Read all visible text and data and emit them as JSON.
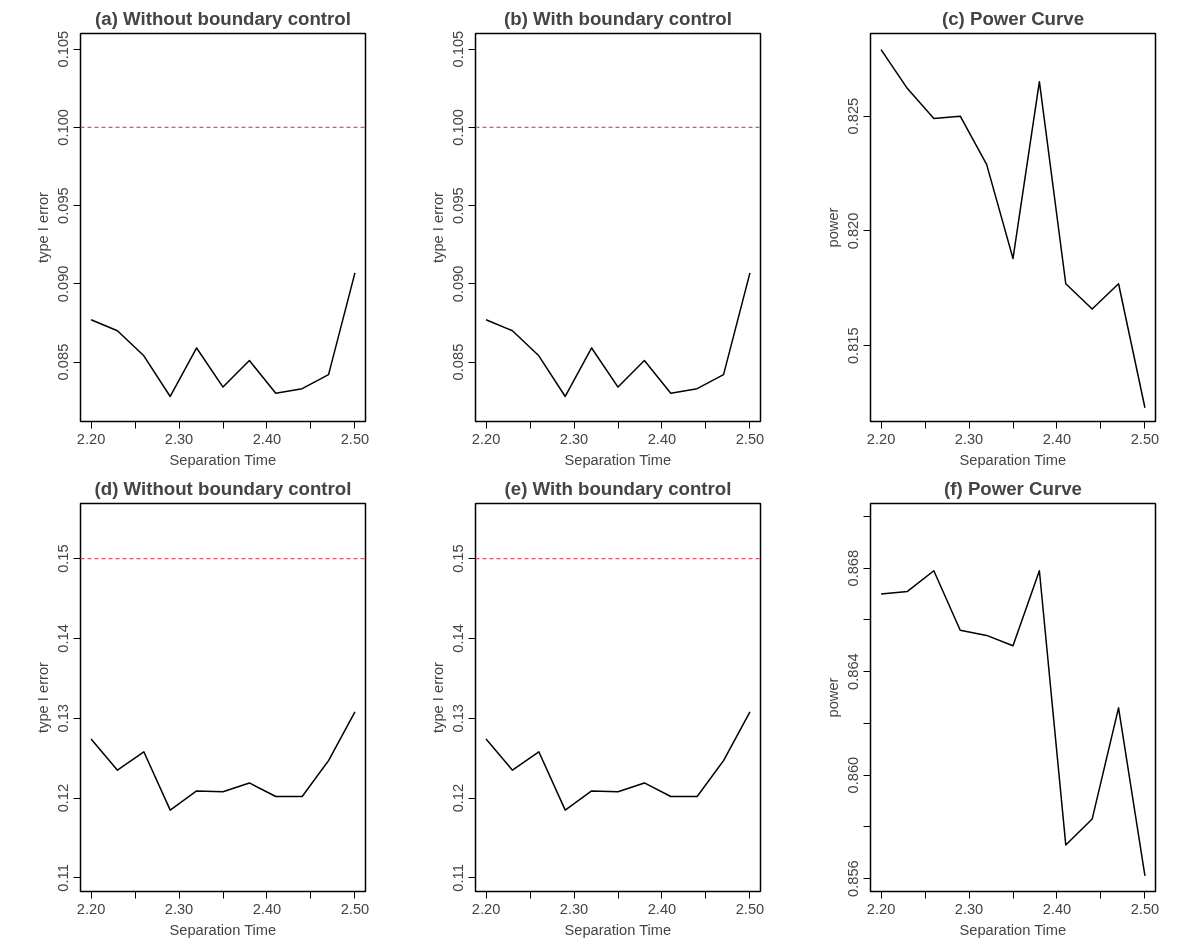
{
  "chart_data": [
    {
      "type": "line",
      "title": "(a) Without boundary control",
      "xlabel": "Separation Time",
      "ylabel": "type I error",
      "x": [
        2.2,
        2.23,
        2.26,
        2.29,
        2.32,
        2.35,
        2.38,
        2.41,
        2.44,
        2.47,
        2.5
      ],
      "xlim": [
        2.188,
        2.512
      ],
      "xticks": [
        {
          "value": 2.2,
          "label": "2.20"
        },
        {
          "value": 2.25,
          "label": null
        },
        {
          "value": 2.3,
          "label": "2.30"
        },
        {
          "value": 2.35,
          "label": null
        },
        {
          "value": 2.4,
          "label": "2.40"
        },
        {
          "value": 2.45,
          "label": null
        },
        {
          "value": 2.5,
          "label": "2.50"
        }
      ],
      "ylim": [
        0.0812,
        0.106
      ],
      "yticks": [
        0.085,
        {
          "value": 0.09,
          "label": "0.090"
        },
        0.095,
        {
          "value": 0.1,
          "label": "0.100"
        },
        0.105
      ],
      "series": [
        {
          "color": "#000000",
          "values": [
            0.0877,
            0.087,
            0.0854,
            0.0828,
            0.0859,
            0.0834,
            0.0851,
            0.083,
            0.0833,
            0.0842,
            0.0907
          ]
        }
      ],
      "ref_lines": [
        {
          "axis": "y",
          "value": 0.1,
          "color": "#df536b",
          "line_style": "dashed"
        }
      ]
    },
    {
      "type": "line",
      "title": "(b) With boundary control",
      "xlabel": "Separation Time",
      "ylabel": "type I error",
      "x": [
        2.2,
        2.23,
        2.26,
        2.29,
        2.32,
        2.35,
        2.38,
        2.41,
        2.44,
        2.47,
        2.5
      ],
      "xlim": [
        2.188,
        2.512
      ],
      "xticks": [
        {
          "value": 2.2,
          "label": "2.20"
        },
        {
          "value": 2.25,
          "label": null
        },
        {
          "value": 2.3,
          "label": "2.30"
        },
        {
          "value": 2.35,
          "label": null
        },
        {
          "value": 2.4,
          "label": "2.40"
        },
        {
          "value": 2.45,
          "label": null
        },
        {
          "value": 2.5,
          "label": "2.50"
        }
      ],
      "ylim": [
        0.0812,
        0.106
      ],
      "yticks": [
        0.085,
        {
          "value": 0.09,
          "label": "0.090"
        },
        0.095,
        {
          "value": 0.1,
          "label": "0.100"
        },
        0.105
      ],
      "series": [
        {
          "color": "#000000",
          "values": [
            0.0877,
            0.087,
            0.0854,
            0.0828,
            0.0859,
            0.0834,
            0.0851,
            0.083,
            0.0833,
            0.0842,
            0.0907
          ]
        }
      ],
      "ref_lines": [
        {
          "axis": "y",
          "value": 0.1,
          "color": "#df536b",
          "line_style": "dashed"
        }
      ]
    },
    {
      "type": "line",
      "title": "(c) Power Curve",
      "xlabel": "Separation Time",
      "ylabel": "power",
      "x": [
        2.2,
        2.23,
        2.26,
        2.29,
        2.32,
        2.35,
        2.38,
        2.41,
        2.44,
        2.47,
        2.5
      ],
      "xlim": [
        2.188,
        2.512
      ],
      "xticks": [
        {
          "value": 2.2,
          "label": "2.20"
        },
        {
          "value": 2.25,
          "label": null
        },
        {
          "value": 2.3,
          "label": "2.30"
        },
        {
          "value": 2.35,
          "label": null
        },
        {
          "value": 2.4,
          "label": "2.40"
        },
        {
          "value": 2.45,
          "label": null
        },
        {
          "value": 2.5,
          "label": "2.50"
        }
      ],
      "ylim": [
        0.8117,
        0.8286
      ],
      "yticks": [
        0.815,
        {
          "value": 0.82,
          "label": "0.820"
        },
        0.825
      ],
      "series": [
        {
          "color": "#000000",
          "values": [
            0.8279,
            0.8262,
            0.8249,
            0.825,
            0.8229,
            0.8188,
            0.8265,
            0.8177,
            0.8166,
            0.8177,
            0.8123
          ]
        }
      ]
    },
    {
      "type": "line",
      "title": "(d) Without boundary control",
      "xlabel": "Separation Time",
      "ylabel": "type I error",
      "x": [
        2.2,
        2.23,
        2.26,
        2.29,
        2.32,
        2.35,
        2.38,
        2.41,
        2.44,
        2.47,
        2.5
      ],
      "xlim": [
        2.188,
        2.512
      ],
      "xticks": [
        {
          "value": 2.2,
          "label": "2.20"
        },
        {
          "value": 2.25,
          "label": null
        },
        {
          "value": 2.3,
          "label": "2.30"
        },
        {
          "value": 2.35,
          "label": null
        },
        {
          "value": 2.4,
          "label": "2.40"
        },
        {
          "value": 2.45,
          "label": null
        },
        {
          "value": 2.5,
          "label": "2.50"
        }
      ],
      "ylim": [
        0.1083,
        0.1569
      ],
      "yticks": [
        0.11,
        0.12,
        0.13,
        0.14,
        0.15
      ],
      "series": [
        {
          "color": "#000000",
          "values": [
            0.1274,
            0.1235,
            0.1258,
            0.1185,
            0.1209,
            0.1208,
            0.1219,
            0.1202,
            0.1202,
            0.1247,
            0.1308
          ]
        }
      ],
      "ref_lines": [
        {
          "axis": "y",
          "value": 0.15,
          "color": "#df536b",
          "line_style": "dashed"
        }
      ]
    },
    {
      "type": "line",
      "title": "(e) With boundary control",
      "xlabel": "Separation Time",
      "ylabel": "type I error",
      "x": [
        2.2,
        2.23,
        2.26,
        2.29,
        2.32,
        2.35,
        2.38,
        2.41,
        2.44,
        2.47,
        2.5
      ],
      "xlim": [
        2.188,
        2.512
      ],
      "xticks": [
        {
          "value": 2.2,
          "label": "2.20"
        },
        {
          "value": 2.25,
          "label": null
        },
        {
          "value": 2.3,
          "label": "2.30"
        },
        {
          "value": 2.35,
          "label": null
        },
        {
          "value": 2.4,
          "label": "2.40"
        },
        {
          "value": 2.45,
          "label": null
        },
        {
          "value": 2.5,
          "label": "2.50"
        }
      ],
      "ylim": [
        0.1083,
        0.1569
      ],
      "yticks": [
        0.11,
        0.12,
        0.13,
        0.14,
        0.15
      ],
      "series": [
        {
          "color": "#000000",
          "values": [
            0.1274,
            0.1235,
            0.1258,
            0.1185,
            0.1209,
            0.1208,
            0.1219,
            0.1202,
            0.1202,
            0.1247,
            0.1308
          ]
        }
      ],
      "ref_lines": [
        {
          "axis": "y",
          "value": 0.15,
          "color": "#df536b",
          "line_style": "dashed"
        }
      ]
    },
    {
      "type": "line",
      "title": "(f) Power Curve",
      "xlabel": "Separation Time",
      "ylabel": "power",
      "x": [
        2.2,
        2.23,
        2.26,
        2.29,
        2.32,
        2.35,
        2.38,
        2.41,
        2.44,
        2.47,
        2.5
      ],
      "xlim": [
        2.188,
        2.512
      ],
      "xticks": [
        {
          "value": 2.2,
          "label": "2.20"
        },
        {
          "value": 2.25,
          "label": null
        },
        {
          "value": 2.3,
          "label": "2.30"
        },
        {
          "value": 2.35,
          "label": null
        },
        {
          "value": 2.4,
          "label": "2.40"
        },
        {
          "value": 2.45,
          "label": null
        },
        {
          "value": 2.5,
          "label": "2.50"
        }
      ],
      "ylim": [
        0.8555,
        0.8705
      ],
      "yticks": [
        0.856,
        {
          "value": 0.858,
          "label": null
        },
        {
          "value": 0.86,
          "label": "0.860"
        },
        {
          "value": 0.862,
          "label": null
        },
        0.864,
        {
          "value": 0.866,
          "label": null
        },
        0.868,
        {
          "value": 0.87,
          "label": null
        }
      ],
      "series": [
        {
          "color": "#000000",
          "values": [
            0.867,
            0.8671,
            0.8679,
            0.8656,
            0.8654,
            0.865,
            0.8679,
            0.8573,
            0.8583,
            0.8626,
            0.8561
          ]
        }
      ]
    }
  ]
}
